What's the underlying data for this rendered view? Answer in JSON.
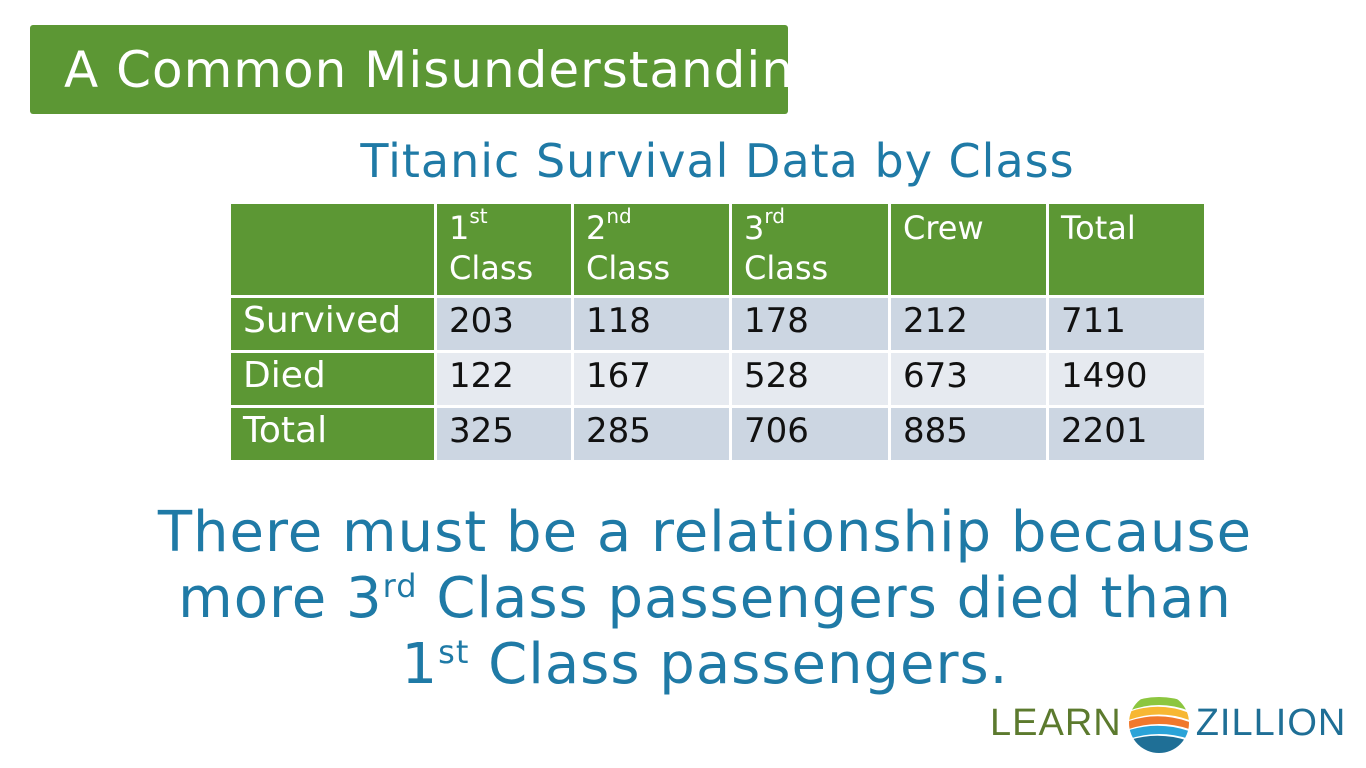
{
  "header": {
    "title": "A Common Misunderstanding"
  },
  "table": {
    "title": "Titanic Survival Data by Class",
    "columns": [
      {
        "line1": "",
        "sup": "",
        "line2": ""
      },
      {
        "line1": "1",
        "sup": "st",
        "line2": "Class"
      },
      {
        "line1": "2",
        "sup": "nd",
        "line2": "Class"
      },
      {
        "line1": "3",
        "sup": "rd",
        "line2": "Class"
      },
      {
        "line1": "Crew",
        "sup": "",
        "line2": ""
      },
      {
        "line1": "Total",
        "sup": "",
        "line2": ""
      }
    ],
    "rows": [
      {
        "label": "Survived",
        "values": [
          "203",
          "118",
          "178",
          "212",
          "711"
        ]
      },
      {
        "label": "Died",
        "values": [
          "122",
          "167",
          "528",
          "673",
          "1490"
        ]
      },
      {
        "label": "Total",
        "values": [
          "325",
          "285",
          "706",
          "885",
          "2201"
        ]
      }
    ]
  },
  "statement": {
    "part1": "There must be a relationship because more 3",
    "sup1": "rd",
    "part2": " Class passengers died than",
    "part3": "1",
    "sup2": "st",
    "part4": " Class passengers."
  },
  "logo": {
    "left": "LEARN",
    "right": "ZILLION"
  },
  "colors": {
    "green": "#5c9734",
    "blue_text": "#1f7aa6",
    "row_odd": "#ccd6e2",
    "row_even": "#e6eaf0"
  }
}
